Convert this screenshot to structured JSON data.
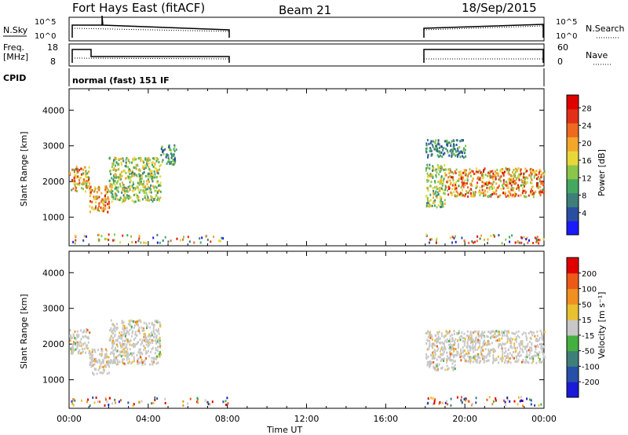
{
  "header": {
    "station": "Fort Hays East (fitACF)",
    "beam": "Beam 21",
    "date": "18/Sep/2015"
  },
  "aux_panels": {
    "nsky_label": "N.Sky",
    "nsky_ticks": [
      "10^5",
      "10^0"
    ],
    "nsearch_label": "N.Search",
    "nsearch_ticks": [
      "10^5",
      "10^0"
    ],
    "freq_label_top": "Freq.",
    "freq_label_bottom": "[MHz]",
    "freq_ticks": [
      "18",
      "8"
    ],
    "nave_label": "Nave",
    "nave_ticks": [
      "60",
      "0"
    ],
    "cpid_label": "CPID",
    "cpid_text": "normal (fast) 151 IF"
  },
  "chart_data": [
    {
      "type": "heatmap",
      "name": "power-panel",
      "ylabel": "Slant Range [km]",
      "y_ticks": [
        "4000",
        "3000",
        "2000",
        "1000"
      ],
      "ylim": [
        200,
        4600
      ],
      "xlim_hours": [
        0,
        24
      ],
      "colorbar_label": "Power [dB]",
      "colorbar_ticks": [
        "28",
        "24",
        "20",
        "16",
        "12",
        "8",
        "4"
      ],
      "colorbar_range": [
        0,
        32
      ],
      "colors": [
        "#1a1aff",
        "#2a4fa0",
        "#3f7f7a",
        "#44a860",
        "#8bc64a",
        "#e7d83a",
        "#f3a72a",
        "#ee6a20",
        "#e23018",
        "#e00000"
      ],
      "echo_regions": [
        {
          "t": [
            0.0,
            1.0
          ],
          "range_km": [
            1750,
            2450
          ],
          "power_db": [
            10,
            28
          ]
        },
        {
          "t": [
            1.0,
            2.0
          ],
          "range_km": [
            1150,
            1900
          ],
          "power_db": [
            14,
            30
          ]
        },
        {
          "t": [
            2.0,
            4.6
          ],
          "range_km": [
            1450,
            2700
          ],
          "power_db": [
            8,
            22
          ]
        },
        {
          "t": [
            4.6,
            5.4
          ],
          "range_km": [
            2500,
            3050
          ],
          "power_db": [
            4,
            16
          ]
        },
        {
          "t": [
            18.0,
            19.0
          ],
          "range_km": [
            1300,
            2500
          ],
          "power_db": [
            8,
            20
          ]
        },
        {
          "t": [
            19.0,
            24.0
          ],
          "range_km": [
            1600,
            2400
          ],
          "power_db": [
            12,
            30
          ]
        },
        {
          "t": [
            18.0,
            20.0
          ],
          "range_km": [
            2700,
            3200
          ],
          "power_db": [
            4,
            14
          ]
        }
      ]
    },
    {
      "type": "heatmap",
      "name": "velocity-panel",
      "ylabel": "Slant Range [km]",
      "y_ticks": [
        "4000",
        "3000",
        "2000",
        "1000"
      ],
      "ylim": [
        200,
        4600
      ],
      "xlim_hours": [
        0,
        24
      ],
      "colorbar_label": "Velocity [m s⁻¹]",
      "colorbar_ticks": [
        "200",
        "100",
        "50",
        "15",
        "-15",
        "-50",
        "-100",
        "-200"
      ],
      "colors": [
        "#1a1ad8",
        "#2850a8",
        "#3f7f7a",
        "#44b040",
        "#c8c8c8",
        "#e8c030",
        "#f09020",
        "#ec5a18",
        "#e00000"
      ],
      "echo_regions": [
        {
          "t": [
            0.0,
            1.0
          ],
          "range_km": [
            1750,
            2450
          ],
          "velocity": [
            -15,
            15
          ]
        },
        {
          "t": [
            1.0,
            2.0
          ],
          "range_km": [
            1150,
            1900
          ],
          "velocity": [
            -15,
            15
          ]
        },
        {
          "t": [
            2.0,
            4.6
          ],
          "range_km": [
            1450,
            2700
          ],
          "velocity": [
            -50,
            15
          ]
        },
        {
          "t": [
            18.0,
            24.0
          ],
          "range_km": [
            1500,
            2400
          ],
          "velocity": [
            -15,
            15
          ]
        },
        {
          "t": [
            18.0,
            19.5
          ],
          "range_km": [
            1300,
            1500
          ],
          "velocity": [
            -15,
            15
          ]
        }
      ]
    }
  ],
  "x_axis": {
    "label": "Time UT",
    "ticks": [
      "00:00",
      "04:00",
      "08:00",
      "12:00",
      "16:00",
      "20:00",
      "00:00"
    ]
  }
}
